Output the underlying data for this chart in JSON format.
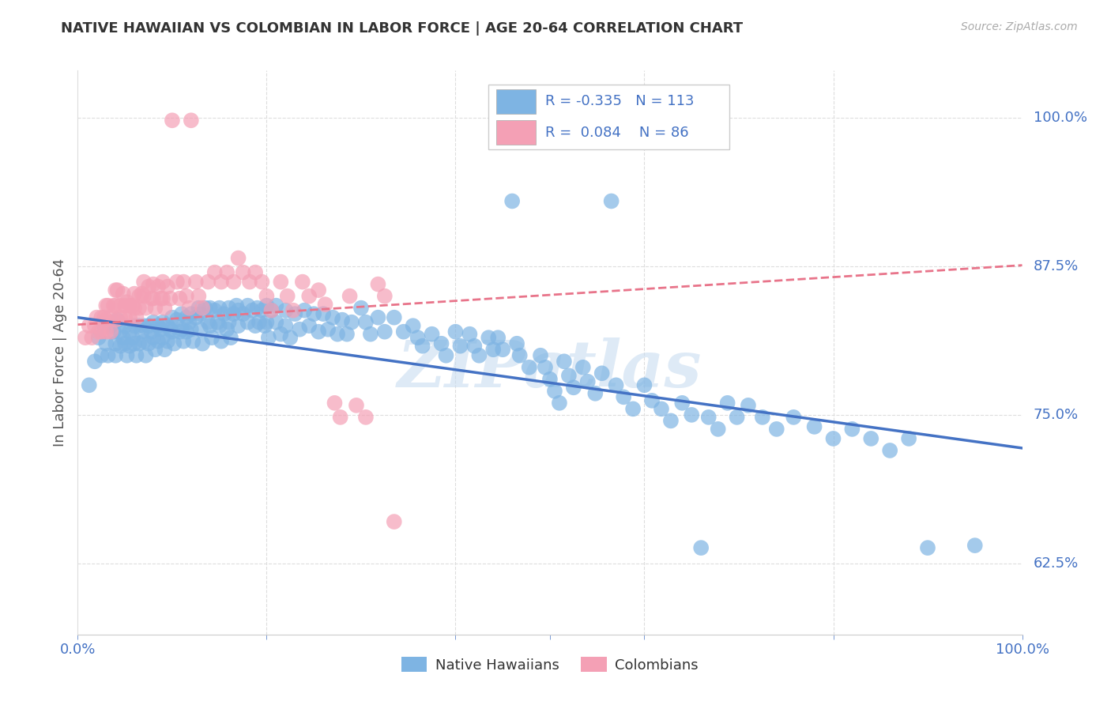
{
  "title": "NATIVE HAWAIIAN VS COLOMBIAN IN LABOR FORCE | AGE 20-64 CORRELATION CHART",
  "source": "Source: ZipAtlas.com",
  "ylabel": "In Labor Force | Age 20-64",
  "blue_color": "#7EB4E3",
  "pink_color": "#F4A0B5",
  "blue_line_color": "#4472C4",
  "pink_line_color": "#E8748A",
  "legend_R_blue": "-0.335",
  "legend_N_blue": "113",
  "legend_R_pink": "0.084",
  "legend_N_pink": "86",
  "legend_label_blue": "Native Hawaiians",
  "legend_label_pink": "Colombians",
  "watermark": "ZIPatlas",
  "xlim": [
    0.0,
    1.0
  ],
  "ylim": [
    0.565,
    1.04
  ],
  "yticks": [
    0.625,
    0.75,
    0.875,
    1.0
  ],
  "ytick_labels": [
    "62.5%",
    "75.0%",
    "87.5%",
    "100.0%"
  ],
  "blue_trend_x": [
    0.0,
    1.0
  ],
  "blue_trend_y": [
    0.832,
    0.722
  ],
  "pink_trend_x": [
    0.0,
    1.0
  ],
  "pink_trend_y": [
    0.826,
    0.876
  ],
  "blue_scatter": [
    [
      0.012,
      0.775
    ],
    [
      0.018,
      0.795
    ],
    [
      0.022,
      0.815
    ],
    [
      0.025,
      0.8
    ],
    [
      0.028,
      0.825
    ],
    [
      0.03,
      0.81
    ],
    [
      0.032,
      0.8
    ],
    [
      0.035,
      0.825
    ],
    [
      0.038,
      0.82
    ],
    [
      0.04,
      0.81
    ],
    [
      0.04,
      0.8
    ],
    [
      0.042,
      0.83
    ],
    [
      0.045,
      0.82
    ],
    [
      0.045,
      0.808
    ],
    [
      0.048,
      0.815
    ],
    [
      0.05,
      0.825
    ],
    [
      0.05,
      0.81
    ],
    [
      0.052,
      0.8
    ],
    [
      0.055,
      0.82
    ],
    [
      0.055,
      0.808
    ],
    [
      0.058,
      0.815
    ],
    [
      0.06,
      0.825
    ],
    [
      0.06,
      0.81
    ],
    [
      0.062,
      0.8
    ],
    [
      0.065,
      0.825
    ],
    [
      0.065,
      0.81
    ],
    [
      0.068,
      0.82
    ],
    [
      0.07,
      0.825
    ],
    [
      0.07,
      0.812
    ],
    [
      0.072,
      0.8
    ],
    [
      0.075,
      0.825
    ],
    [
      0.075,
      0.81
    ],
    [
      0.078,
      0.82
    ],
    [
      0.08,
      0.828
    ],
    [
      0.08,
      0.815
    ],
    [
      0.082,
      0.805
    ],
    [
      0.085,
      0.825
    ],
    [
      0.085,
      0.812
    ],
    [
      0.088,
      0.822
    ],
    [
      0.09,
      0.828
    ],
    [
      0.09,
      0.815
    ],
    [
      0.092,
      0.805
    ],
    [
      0.095,
      0.825
    ],
    [
      0.095,
      0.812
    ],
    [
      0.098,
      0.822
    ],
    [
      0.1,
      0.832
    ],
    [
      0.1,
      0.82
    ],
    [
      0.102,
      0.81
    ],
    [
      0.105,
      0.83
    ],
    [
      0.108,
      0.82
    ],
    [
      0.11,
      0.835
    ],
    [
      0.11,
      0.822
    ],
    [
      0.112,
      0.812
    ],
    [
      0.115,
      0.832
    ],
    [
      0.115,
      0.82
    ],
    [
      0.118,
      0.828
    ],
    [
      0.12,
      0.835
    ],
    [
      0.12,
      0.822
    ],
    [
      0.122,
      0.812
    ],
    [
      0.125,
      0.832
    ],
    [
      0.128,
      0.84
    ],
    [
      0.13,
      0.835
    ],
    [
      0.13,
      0.822
    ],
    [
      0.132,
      0.81
    ],
    [
      0.135,
      0.84
    ],
    [
      0.138,
      0.828
    ],
    [
      0.14,
      0.84
    ],
    [
      0.14,
      0.825
    ],
    [
      0.142,
      0.815
    ],
    [
      0.145,
      0.838
    ],
    [
      0.148,
      0.828
    ],
    [
      0.15,
      0.84
    ],
    [
      0.15,
      0.825
    ],
    [
      0.152,
      0.812
    ],
    [
      0.155,
      0.835
    ],
    [
      0.158,
      0.822
    ],
    [
      0.16,
      0.84
    ],
    [
      0.16,
      0.828
    ],
    [
      0.162,
      0.815
    ],
    [
      0.165,
      0.835
    ],
    [
      0.168,
      0.842
    ],
    [
      0.17,
      0.838
    ],
    [
      0.17,
      0.825
    ],
    [
      0.175,
      0.835
    ],
    [
      0.18,
      0.842
    ],
    [
      0.18,
      0.828
    ],
    [
      0.185,
      0.838
    ],
    [
      0.188,
      0.825
    ],
    [
      0.19,
      0.84
    ],
    [
      0.192,
      0.828
    ],
    [
      0.195,
      0.838
    ],
    [
      0.198,
      0.825
    ],
    [
      0.2,
      0.842
    ],
    [
      0.2,
      0.828
    ],
    [
      0.202,
      0.815
    ],
    [
      0.205,
      0.838
    ],
    [
      0.21,
      0.842
    ],
    [
      0.21,
      0.828
    ],
    [
      0.215,
      0.818
    ],
    [
      0.22,
      0.838
    ],
    [
      0.22,
      0.825
    ],
    [
      0.225,
      0.815
    ],
    [
      0.23,
      0.835
    ],
    [
      0.235,
      0.822
    ],
    [
      0.24,
      0.838
    ],
    [
      0.245,
      0.825
    ],
    [
      0.25,
      0.835
    ],
    [
      0.255,
      0.82
    ],
    [
      0.26,
      0.835
    ],
    [
      0.265,
      0.822
    ],
    [
      0.27,
      0.832
    ],
    [
      0.275,
      0.818
    ],
    [
      0.28,
      0.83
    ],
    [
      0.285,
      0.818
    ],
    [
      0.29,
      0.828
    ],
    [
      0.3,
      0.84
    ],
    [
      0.305,
      0.828
    ],
    [
      0.31,
      0.818
    ],
    [
      0.318,
      0.832
    ],
    [
      0.325,
      0.82
    ],
    [
      0.335,
      0.832
    ],
    [
      0.345,
      0.82
    ],
    [
      0.355,
      0.825
    ],
    [
      0.36,
      0.815
    ],
    [
      0.365,
      0.808
    ],
    [
      0.375,
      0.818
    ],
    [
      0.385,
      0.81
    ],
    [
      0.39,
      0.8
    ],
    [
      0.4,
      0.82
    ],
    [
      0.405,
      0.808
    ],
    [
      0.415,
      0.818
    ],
    [
      0.42,
      0.808
    ],
    [
      0.425,
      0.8
    ],
    [
      0.435,
      0.815
    ],
    [
      0.44,
      0.805
    ],
    [
      0.445,
      0.815
    ],
    [
      0.45,
      0.805
    ],
    [
      0.46,
      0.93
    ],
    [
      0.465,
      0.81
    ],
    [
      0.468,
      0.8
    ],
    [
      0.478,
      0.79
    ],
    [
      0.49,
      0.8
    ],
    [
      0.495,
      0.79
    ],
    [
      0.5,
      0.78
    ],
    [
      0.505,
      0.77
    ],
    [
      0.51,
      0.76
    ],
    [
      0.515,
      0.795
    ],
    [
      0.52,
      0.783
    ],
    [
      0.525,
      0.773
    ],
    [
      0.535,
      0.79
    ],
    [
      0.54,
      0.778
    ],
    [
      0.548,
      0.768
    ],
    [
      0.555,
      0.785
    ],
    [
      0.565,
      0.93
    ],
    [
      0.57,
      0.775
    ],
    [
      0.578,
      0.765
    ],
    [
      0.588,
      0.755
    ],
    [
      0.6,
      0.775
    ],
    [
      0.608,
      0.762
    ],
    [
      0.618,
      0.755
    ],
    [
      0.628,
      0.745
    ],
    [
      0.64,
      0.76
    ],
    [
      0.65,
      0.75
    ],
    [
      0.66,
      0.638
    ],
    [
      0.668,
      0.748
    ],
    [
      0.678,
      0.738
    ],
    [
      0.688,
      0.76
    ],
    [
      0.698,
      0.748
    ],
    [
      0.71,
      0.758
    ],
    [
      0.725,
      0.748
    ],
    [
      0.74,
      0.738
    ],
    [
      0.758,
      0.748
    ],
    [
      0.78,
      0.74
    ],
    [
      0.8,
      0.73
    ],
    [
      0.82,
      0.738
    ],
    [
      0.84,
      0.73
    ],
    [
      0.86,
      0.72
    ],
    [
      0.88,
      0.73
    ],
    [
      0.9,
      0.638
    ],
    [
      0.95,
      0.64
    ]
  ],
  "pink_scatter": [
    [
      0.008,
      0.815
    ],
    [
      0.012,
      0.825
    ],
    [
      0.015,
      0.815
    ],
    [
      0.018,
      0.825
    ],
    [
      0.02,
      0.832
    ],
    [
      0.022,
      0.82
    ],
    [
      0.025,
      0.832
    ],
    [
      0.025,
      0.82
    ],
    [
      0.028,
      0.832
    ],
    [
      0.03,
      0.842
    ],
    [
      0.03,
      0.83
    ],
    [
      0.03,
      0.82
    ],
    [
      0.032,
      0.842
    ],
    [
      0.035,
      0.832
    ],
    [
      0.035,
      0.82
    ],
    [
      0.038,
      0.842
    ],
    [
      0.04,
      0.855
    ],
    [
      0.04,
      0.842
    ],
    [
      0.04,
      0.83
    ],
    [
      0.042,
      0.855
    ],
    [
      0.045,
      0.842
    ],
    [
      0.045,
      0.832
    ],
    [
      0.048,
      0.852
    ],
    [
      0.05,
      0.842
    ],
    [
      0.05,
      0.832
    ],
    [
      0.052,
      0.845
    ],
    [
      0.055,
      0.842
    ],
    [
      0.055,
      0.832
    ],
    [
      0.058,
      0.842
    ],
    [
      0.06,
      0.852
    ],
    [
      0.06,
      0.84
    ],
    [
      0.062,
      0.832
    ],
    [
      0.065,
      0.85
    ],
    [
      0.065,
      0.84
    ],
    [
      0.068,
      0.852
    ],
    [
      0.07,
      0.862
    ],
    [
      0.07,
      0.85
    ],
    [
      0.072,
      0.84
    ],
    [
      0.075,
      0.858
    ],
    [
      0.078,
      0.848
    ],
    [
      0.08,
      0.86
    ],
    [
      0.08,
      0.848
    ],
    [
      0.082,
      0.84
    ],
    [
      0.085,
      0.858
    ],
    [
      0.088,
      0.848
    ],
    [
      0.09,
      0.862
    ],
    [
      0.09,
      0.848
    ],
    [
      0.092,
      0.84
    ],
    [
      0.095,
      0.858
    ],
    [
      0.098,
      0.848
    ],
    [
      0.1,
      0.998
    ],
    [
      0.105,
      0.862
    ],
    [
      0.108,
      0.848
    ],
    [
      0.112,
      0.862
    ],
    [
      0.115,
      0.85
    ],
    [
      0.118,
      0.84
    ],
    [
      0.12,
      0.998
    ],
    [
      0.125,
      0.862
    ],
    [
      0.128,
      0.85
    ],
    [
      0.132,
      0.84
    ],
    [
      0.138,
      0.862
    ],
    [
      0.145,
      0.87
    ],
    [
      0.152,
      0.862
    ],
    [
      0.158,
      0.87
    ],
    [
      0.165,
      0.862
    ],
    [
      0.17,
      0.882
    ],
    [
      0.175,
      0.87
    ],
    [
      0.182,
      0.862
    ],
    [
      0.188,
      0.87
    ],
    [
      0.195,
      0.862
    ],
    [
      0.2,
      0.85
    ],
    [
      0.205,
      0.838
    ],
    [
      0.215,
      0.862
    ],
    [
      0.222,
      0.85
    ],
    [
      0.228,
      0.838
    ],
    [
      0.238,
      0.862
    ],
    [
      0.245,
      0.85
    ],
    [
      0.255,
      0.855
    ],
    [
      0.262,
      0.843
    ],
    [
      0.272,
      0.76
    ],
    [
      0.278,
      0.748
    ],
    [
      0.288,
      0.85
    ],
    [
      0.295,
      0.758
    ],
    [
      0.305,
      0.748
    ],
    [
      0.318,
      0.86
    ],
    [
      0.325,
      0.85
    ],
    [
      0.335,
      0.66
    ]
  ]
}
